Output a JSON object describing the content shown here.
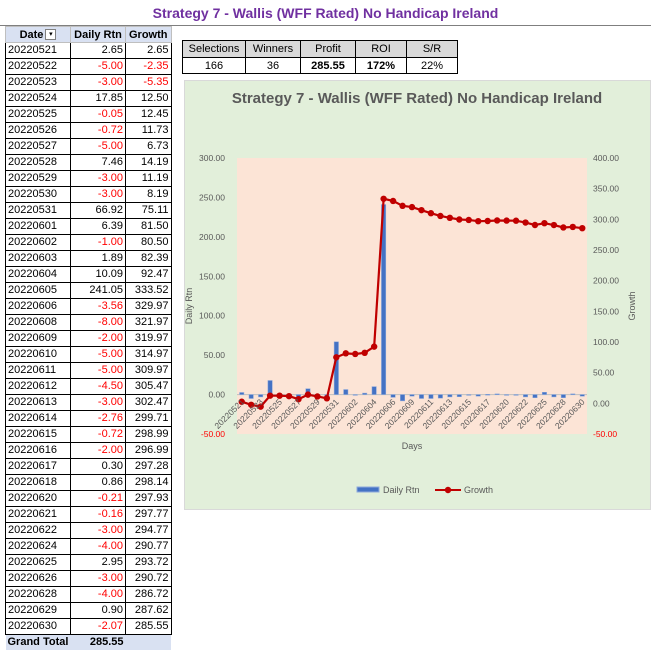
{
  "page_title": "Strategy 7 - Wallis (WFF Rated) No Handicap Ireland",
  "table": {
    "headers": {
      "date": "Date",
      "daily": "Daily Rtn",
      "growth": "Growth"
    },
    "sort_icon": "filter-sort-icon",
    "rows": [
      {
        "date": "20220521",
        "daily": "2.65",
        "growth": "2.65"
      },
      {
        "date": "20220522",
        "daily": "-5.00",
        "growth": "-2.35"
      },
      {
        "date": "20220523",
        "daily": "-3.00",
        "growth": "-5.35"
      },
      {
        "date": "20220524",
        "daily": "17.85",
        "growth": "12.50"
      },
      {
        "date": "20220525",
        "daily": "-0.05",
        "growth": "12.45"
      },
      {
        "date": "20220526",
        "daily": "-0.72",
        "growth": "11.73"
      },
      {
        "date": "20220527",
        "daily": "-5.00",
        "growth": "6.73"
      },
      {
        "date": "20220528",
        "daily": "7.46",
        "growth": "14.19"
      },
      {
        "date": "20220529",
        "daily": "-3.00",
        "growth": "11.19"
      },
      {
        "date": "20220530",
        "daily": "-3.00",
        "growth": "8.19"
      },
      {
        "date": "20220531",
        "daily": "66.92",
        "growth": "75.11"
      },
      {
        "date": "20220601",
        "daily": "6.39",
        "growth": "81.50"
      },
      {
        "date": "20220602",
        "daily": "-1.00",
        "growth": "80.50"
      },
      {
        "date": "20220603",
        "daily": "1.89",
        "growth": "82.39"
      },
      {
        "date": "20220604",
        "daily": "10.09",
        "growth": "92.47"
      },
      {
        "date": "20220605",
        "daily": "241.05",
        "growth": "333.52"
      },
      {
        "date": "20220606",
        "daily": "-3.56",
        "growth": "329.97"
      },
      {
        "date": "20220608",
        "daily": "-8.00",
        "growth": "321.97"
      },
      {
        "date": "20220609",
        "daily": "-2.00",
        "growth": "319.97"
      },
      {
        "date": "20220610",
        "daily": "-5.00",
        "growth": "314.97"
      },
      {
        "date": "20220611",
        "daily": "-5.00",
        "growth": "309.97"
      },
      {
        "date": "20220612",
        "daily": "-4.50",
        "growth": "305.47"
      },
      {
        "date": "20220613",
        "daily": "-3.00",
        "growth": "302.47"
      },
      {
        "date": "20220614",
        "daily": "-2.76",
        "growth": "299.71"
      },
      {
        "date": "20220615",
        "daily": "-0.72",
        "growth": "298.99"
      },
      {
        "date": "20220616",
        "daily": "-2.00",
        "growth": "296.99"
      },
      {
        "date": "20220617",
        "daily": "0.30",
        "growth": "297.28"
      },
      {
        "date": "20220618",
        "daily": "0.86",
        "growth": "298.14"
      },
      {
        "date": "20220620",
        "daily": "-0.21",
        "growth": "297.93"
      },
      {
        "date": "20220621",
        "daily": "-0.16",
        "growth": "297.77"
      },
      {
        "date": "20220622",
        "daily": "-3.00",
        "growth": "294.77"
      },
      {
        "date": "20220624",
        "daily": "-4.00",
        "growth": "290.77"
      },
      {
        "date": "20220625",
        "daily": "2.95",
        "growth": "293.72"
      },
      {
        "date": "20220626",
        "daily": "-3.00",
        "growth": "290.72"
      },
      {
        "date": "20220628",
        "daily": "-4.00",
        "growth": "286.72"
      },
      {
        "date": "20220629",
        "daily": "0.90",
        "growth": "287.62"
      },
      {
        "date": "20220630",
        "daily": "-2.07",
        "growth": "285.55"
      }
    ],
    "grand_total_label": "Grand Total",
    "grand_total_value": "285.55"
  },
  "summary": {
    "headers": [
      "Selections",
      "Winners",
      "Profit",
      "ROI",
      "S/R"
    ],
    "values": [
      "166",
      "36",
      "285.55",
      "172%",
      "22%"
    ]
  },
  "colors": {
    "title": "#7030a0",
    "negative": "#ff0000",
    "bar": "#4472c4",
    "line": "#c00000",
    "plot_bg": "#fce4d6",
    "chart_bg": "#e2efda"
  },
  "chart_data": {
    "type": "bar",
    "combo": "bar+line",
    "title": "Strategy 7 - Wallis (WFF Rated) No Handicap Ireland",
    "xlabel": "Days",
    "ylabel": "Daily Rtn",
    "y2label": "Growth",
    "ylim": [
      -50,
      300
    ],
    "y2lim": [
      -50,
      400
    ],
    "yticks": [
      "300.00",
      "250.00",
      "200.00",
      "150.00",
      "100.00",
      "50.00",
      "0.00",
      "-50.00"
    ],
    "y2ticks": [
      "400.00",
      "350.00",
      "300.00",
      "250.00",
      "200.00",
      "150.00",
      "100.00",
      "50.00",
      "0.00",
      "-50.00"
    ],
    "x_tick_labels": [
      "20220521",
      "20220523",
      "20220525",
      "20220527",
      "20220529",
      "20220531",
      "20220602",
      "20220604",
      "20220606",
      "20220609",
      "20220611",
      "20220613",
      "20220615",
      "20220617",
      "20220620",
      "20220622",
      "20220625",
      "20220628",
      "20220630"
    ],
    "categories": [
      "20220521",
      "20220522",
      "20220523",
      "20220524",
      "20220525",
      "20220526",
      "20220527",
      "20220528",
      "20220529",
      "20220530",
      "20220531",
      "20220601",
      "20220602",
      "20220603",
      "20220604",
      "20220605",
      "20220606",
      "20220608",
      "20220609",
      "20220610",
      "20220611",
      "20220612",
      "20220613",
      "20220614",
      "20220615",
      "20220616",
      "20220617",
      "20220618",
      "20220620",
      "20220621",
      "20220622",
      "20220624",
      "20220625",
      "20220626",
      "20220628",
      "20220629",
      "20220630"
    ],
    "series": [
      {
        "name": "Daily Rtn",
        "axis": "left",
        "kind": "bar",
        "values": [
          2.65,
          -5.0,
          -3.0,
          17.85,
          -0.05,
          -0.72,
          -5.0,
          7.46,
          -3.0,
          -3.0,
          66.92,
          6.39,
          -1.0,
          1.89,
          10.09,
          241.05,
          -3.56,
          -8.0,
          -2.0,
          -5.0,
          -5.0,
          -4.5,
          -3.0,
          -2.76,
          -0.72,
          -2.0,
          0.3,
          0.86,
          -0.21,
          -0.16,
          -3.0,
          -4.0,
          2.95,
          -3.0,
          -4.0,
          0.9,
          -2.07
        ]
      },
      {
        "name": "Growth",
        "axis": "right",
        "kind": "line",
        "values": [
          2.65,
          -2.35,
          -5.35,
          12.5,
          12.45,
          11.73,
          6.73,
          14.19,
          11.19,
          8.19,
          75.11,
          81.5,
          80.5,
          82.39,
          92.47,
          333.52,
          329.97,
          321.97,
          319.97,
          314.97,
          309.97,
          305.47,
          302.47,
          299.71,
          298.99,
          296.99,
          297.28,
          298.14,
          297.93,
          297.77,
          294.77,
          290.77,
          293.72,
          290.72,
          286.72,
          287.62,
          285.55
        ]
      }
    ],
    "legend": "bottom",
    "grid": false
  }
}
